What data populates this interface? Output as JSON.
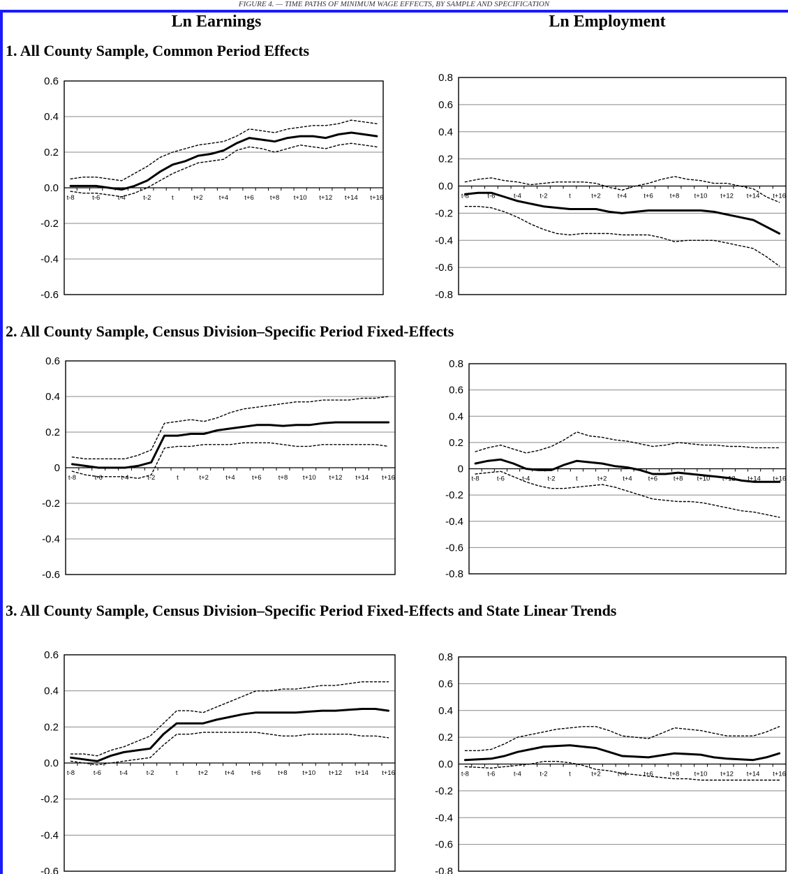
{
  "figure_title": "FIGURE 4. — TIME PATHS OF MINIMUM WAGE EFFECTS, BY SAMPLE AND SPECIFICATION",
  "columns": {
    "left": "Ln Earnings",
    "right": "Ln Employment"
  },
  "sections": [
    "1.   All County Sample, Common Period Effects",
    "2.   All County Sample, Census Division–Specific Period Fixed-Effects",
    "3.   All County Sample, Census Division–Specific Period Fixed-Effects and State Linear Trends"
  ],
  "style": {
    "frame_color": "#1a1aff",
    "grid_color": "#888888",
    "line_color": "#000000"
  },
  "chart_data": [
    {
      "type": "line",
      "title": "",
      "xlabel": "",
      "ylabel": "",
      "x": [
        "t-8",
        "t-7",
        "t-6",
        "t-5",
        "t-4",
        "t-3",
        "t-2",
        "t-1",
        "t",
        "t+1",
        "t+2",
        "t+3",
        "t+4",
        "t+5",
        "t+6",
        "t+7",
        "t+8",
        "t+9",
        "t+10",
        "t+11",
        "t+12",
        "t+13",
        "t+14",
        "t+15",
        "t+16"
      ],
      "x_tick_labels": [
        "t-8",
        "t-6",
        "t-4",
        "t-2",
        "t",
        "t+2",
        "t+4",
        "t+6",
        "t+8",
        "t+10",
        "t+12",
        "t+14",
        "t+16"
      ],
      "y_tick_labels": [
        "0.6",
        "0.4",
        "0.2",
        "0.0",
        "-0.2",
        "-0.4",
        "-0.6"
      ],
      "ylim": [
        -0.6,
        0.6
      ],
      "grid": true,
      "series": [
        {
          "values": [
            0.01,
            0.01,
            0.01,
            0.0,
            -0.01,
            0.01,
            0.04,
            0.09,
            0.13,
            0.15,
            0.18,
            0.19,
            0.21,
            0.25,
            0.28,
            0.27,
            0.26,
            0.28,
            0.29,
            0.29,
            0.28,
            0.3,
            0.31,
            0.3,
            0.29
          ]
        },
        {
          "values": [
            0.05,
            0.06,
            0.06,
            0.05,
            0.04,
            0.08,
            0.12,
            0.17,
            0.2,
            0.22,
            0.24,
            0.25,
            0.26,
            0.29,
            0.33,
            0.32,
            0.31,
            0.33,
            0.34,
            0.35,
            0.35,
            0.36,
            0.38,
            0.37,
            0.36
          ]
        },
        {
          "values": [
            -0.02,
            -0.03,
            -0.03,
            -0.04,
            -0.05,
            -0.03,
            0.0,
            0.04,
            0.08,
            0.11,
            0.14,
            0.15,
            0.16,
            0.21,
            0.23,
            0.22,
            0.2,
            0.22,
            0.24,
            0.23,
            0.22,
            0.24,
            0.25,
            0.24,
            0.23
          ]
        }
      ]
    },
    {
      "type": "line",
      "title": "",
      "xlabel": "",
      "ylabel": "",
      "x": [
        "t-8",
        "t-7",
        "t-6",
        "t-5",
        "t-4",
        "t-3",
        "t-2",
        "t-1",
        "t",
        "t+1",
        "t+2",
        "t+3",
        "t+4",
        "t+5",
        "t+6",
        "t+7",
        "t+8",
        "t+9",
        "t+10",
        "t+11",
        "t+12",
        "t+13",
        "t+14",
        "t+15",
        "t+16"
      ],
      "x_tick_labels": [
        "t-8",
        "t-6",
        "t-4",
        "t-2",
        "t",
        "t+2",
        "t+4",
        "t+6",
        "t+8",
        "t+10",
        "t+12",
        "t+14",
        "t+16"
      ],
      "y_tick_labels": [
        "0.8",
        "0.6",
        "0.4",
        "0.2",
        "0.0",
        "-0.2",
        "-0.4",
        "-0.6",
        "-0.8"
      ],
      "ylim": [
        -0.8,
        0.8
      ],
      "grid": true,
      "series": [
        {
          "values": [
            -0.06,
            -0.05,
            -0.05,
            -0.08,
            -0.11,
            -0.13,
            -0.15,
            -0.16,
            -0.17,
            -0.17,
            -0.17,
            -0.19,
            -0.2,
            -0.19,
            -0.18,
            -0.18,
            -0.18,
            -0.18,
            -0.18,
            -0.19,
            -0.21,
            -0.23,
            -0.25,
            -0.3,
            -0.35
          ]
        },
        {
          "values": [
            0.03,
            0.05,
            0.06,
            0.04,
            0.03,
            0.01,
            0.02,
            0.03,
            0.03,
            0.03,
            0.02,
            -0.01,
            -0.03,
            0.0,
            0.02,
            0.05,
            0.07,
            0.05,
            0.04,
            0.02,
            0.02,
            0.0,
            -0.02,
            -0.08,
            -0.12
          ]
        },
        {
          "values": [
            -0.15,
            -0.15,
            -0.16,
            -0.19,
            -0.23,
            -0.28,
            -0.32,
            -0.35,
            -0.36,
            -0.35,
            -0.35,
            -0.35,
            -0.36,
            -0.36,
            -0.36,
            -0.38,
            -0.41,
            -0.4,
            -0.4,
            -0.4,
            -0.42,
            -0.44,
            -0.46,
            -0.52,
            -0.59
          ]
        }
      ]
    },
    {
      "type": "line",
      "title": "",
      "xlabel": "",
      "ylabel": "",
      "x": [
        "t-8",
        "t-7",
        "t-6",
        "t-5",
        "t-4",
        "t-3",
        "t-2",
        "t-1",
        "t",
        "t+1",
        "t+2",
        "t+3",
        "t+4",
        "t+5",
        "t+6",
        "t+7",
        "t+8",
        "t+9",
        "t+10",
        "t+11",
        "t+12",
        "t+13",
        "t+14",
        "t+15",
        "t+16"
      ],
      "x_tick_labels": [
        "t-8",
        "t-6",
        "t-4",
        "t-2",
        "t",
        "t+2",
        "t+4",
        "t+6",
        "t+8",
        "t+10",
        "t+12",
        "t+14",
        "t+16"
      ],
      "y_tick_labels": [
        "0.6",
        "0.4",
        "0.2",
        "0",
        "-0.2",
        "-0.4",
        "-0.6"
      ],
      "ylim": [
        -0.6,
        0.6
      ],
      "grid": true,
      "series": [
        {
          "values": [
            0.02,
            0.01,
            0.0,
            0.0,
            0.0,
            0.01,
            0.03,
            0.18,
            0.18,
            0.19,
            0.19,
            0.21,
            0.22,
            0.23,
            0.24,
            0.24,
            0.235,
            0.24,
            0.24,
            0.25,
            0.255,
            0.255,
            0.255,
            0.255,
            0.255
          ]
        },
        {
          "values": [
            0.06,
            0.05,
            0.05,
            0.05,
            0.05,
            0.07,
            0.1,
            0.25,
            0.26,
            0.27,
            0.26,
            0.28,
            0.31,
            0.33,
            0.34,
            0.35,
            0.36,
            0.37,
            0.37,
            0.38,
            0.38,
            0.38,
            0.39,
            0.39,
            0.4
          ]
        },
        {
          "values": [
            -0.02,
            -0.04,
            -0.05,
            -0.05,
            -0.05,
            -0.06,
            -0.04,
            0.11,
            0.12,
            0.12,
            0.13,
            0.13,
            0.13,
            0.14,
            0.14,
            0.14,
            0.13,
            0.12,
            0.12,
            0.13,
            0.13,
            0.13,
            0.13,
            0.13,
            0.12
          ]
        }
      ]
    },
    {
      "type": "line",
      "title": "",
      "xlabel": "",
      "ylabel": "",
      "x": [
        "t-8",
        "t-7",
        "t-6",
        "t-5",
        "t-4",
        "t-3",
        "t-2",
        "t-1",
        "t",
        "t+1",
        "t+2",
        "t+3",
        "t+4",
        "t+5",
        "t+6",
        "t+7",
        "t+8",
        "t+9",
        "t+10",
        "t+11",
        "t+12",
        "t+13",
        "t+14",
        "t+15",
        "t+16"
      ],
      "x_tick_labels": [
        "t-8",
        "t-6",
        "t-4",
        "t-2",
        "t",
        "t+2",
        "t+4",
        "t+6",
        "t+8",
        "t+10",
        "t+12",
        "t+14",
        "t+16"
      ],
      "y_tick_labels": [
        "0.8",
        "0.6",
        "0.4",
        "0.2",
        "0",
        "-0.2",
        "-0.4",
        "-0.6",
        "-0.8"
      ],
      "ylim": [
        -0.8,
        0.8
      ],
      "grid": true,
      "series": [
        {
          "values": [
            0.04,
            0.06,
            0.07,
            0.04,
            0.0,
            -0.01,
            -0.01,
            0.03,
            0.06,
            0.05,
            0.04,
            0.02,
            0.01,
            -0.01,
            -0.04,
            -0.04,
            -0.03,
            -0.04,
            -0.05,
            -0.06,
            -0.07,
            -0.09,
            -0.1,
            -0.1,
            -0.1
          ]
        },
        {
          "values": [
            0.13,
            0.16,
            0.18,
            0.15,
            0.12,
            0.14,
            0.17,
            0.22,
            0.28,
            0.25,
            0.24,
            0.22,
            0.21,
            0.19,
            0.17,
            0.18,
            0.2,
            0.19,
            0.18,
            0.18,
            0.17,
            0.17,
            0.16,
            0.16,
            0.16
          ]
        },
        {
          "values": [
            -0.04,
            -0.03,
            -0.02,
            -0.06,
            -0.1,
            -0.13,
            -0.15,
            -0.15,
            -0.14,
            -0.13,
            -0.12,
            -0.14,
            -0.17,
            -0.2,
            -0.23,
            -0.24,
            -0.25,
            -0.25,
            -0.26,
            -0.28,
            -0.3,
            -0.32,
            -0.33,
            -0.35,
            -0.37
          ]
        }
      ]
    },
    {
      "type": "line",
      "title": "",
      "xlabel": "",
      "ylabel": "",
      "x": [
        "t-8",
        "t-7",
        "t-6",
        "t-5",
        "t-4",
        "t-3",
        "t-2",
        "t-1",
        "t",
        "t+1",
        "t+2",
        "t+3",
        "t+4",
        "t+5",
        "t+6",
        "t+7",
        "t+8",
        "t+9",
        "t+10",
        "t+11",
        "t+12",
        "t+13",
        "t+14",
        "t+15",
        "t+16"
      ],
      "x_tick_labels": [
        "t-8",
        "t-6",
        "t-4",
        "t-2",
        "t",
        "t+2",
        "t+4",
        "t+6",
        "t+8",
        "t+10",
        "t+12",
        "t+14",
        "t+16"
      ],
      "y_tick_labels": [
        "0.6",
        "0.4",
        "0.2",
        "0.0",
        "-0.2",
        "-0.4",
        "-0.6"
      ],
      "ylim": [
        -0.6,
        0.6
      ],
      "grid": true,
      "series": [
        {
          "values": [
            0.03,
            0.02,
            0.01,
            0.04,
            0.06,
            0.07,
            0.08,
            0.16,
            0.22,
            0.22,
            0.22,
            0.24,
            0.255,
            0.27,
            0.28,
            0.28,
            0.28,
            0.28,
            0.285,
            0.29,
            0.29,
            0.295,
            0.3,
            0.3,
            0.29
          ]
        },
        {
          "values": [
            0.05,
            0.05,
            0.04,
            0.07,
            0.09,
            0.12,
            0.15,
            0.22,
            0.29,
            0.29,
            0.28,
            0.31,
            0.34,
            0.37,
            0.4,
            0.4,
            0.41,
            0.41,
            0.42,
            0.43,
            0.43,
            0.44,
            0.45,
            0.45,
            0.45
          ]
        },
        {
          "values": [
            0.01,
            0.0,
            -0.01,
            0.0,
            0.01,
            0.02,
            0.03,
            0.1,
            0.16,
            0.16,
            0.17,
            0.17,
            0.17,
            0.17,
            0.17,
            0.16,
            0.15,
            0.15,
            0.16,
            0.16,
            0.16,
            0.16,
            0.15,
            0.15,
            0.14
          ]
        }
      ]
    },
    {
      "type": "line",
      "title": "",
      "xlabel": "",
      "ylabel": "",
      "x": [
        "t-8",
        "t-7",
        "t-6",
        "t-5",
        "t-4",
        "t-3",
        "t-2",
        "t-1",
        "t",
        "t+1",
        "t+2",
        "t+3",
        "t+4",
        "t+5",
        "t+6",
        "t+7",
        "t+8",
        "t+9",
        "t+10",
        "t+11",
        "t+12",
        "t+13",
        "t+14",
        "t+15",
        "t+16"
      ],
      "x_tick_labels": [
        "t-8",
        "t-6",
        "t-4",
        "t-2",
        "t",
        "t+2",
        "t+4",
        "t+6",
        "t+8",
        "t+10",
        "t+12",
        "t+14",
        "t+16"
      ],
      "y_tick_labels": [
        "0.8",
        "0.6",
        "0.4",
        "0.2",
        "0.0",
        "-0.2",
        "-0.4",
        "-0.6",
        "-0.8"
      ],
      "ylim": [
        -0.8,
        0.8
      ],
      "grid": true,
      "series": [
        {
          "values": [
            0.03,
            0.035,
            0.04,
            0.06,
            0.09,
            0.11,
            0.13,
            0.135,
            0.14,
            0.13,
            0.12,
            0.09,
            0.06,
            0.055,
            0.05,
            0.065,
            0.08,
            0.075,
            0.07,
            0.05,
            0.04,
            0.035,
            0.03,
            0.05,
            0.08
          ]
        },
        {
          "values": [
            0.1,
            0.1,
            0.11,
            0.15,
            0.2,
            0.22,
            0.24,
            0.26,
            0.27,
            0.28,
            0.28,
            0.25,
            0.21,
            0.2,
            0.19,
            0.23,
            0.27,
            0.26,
            0.25,
            0.23,
            0.21,
            0.21,
            0.21,
            0.24,
            0.28
          ]
        },
        {
          "values": [
            -0.02,
            -0.025,
            -0.03,
            -0.02,
            -0.01,
            0.0,
            0.02,
            0.02,
            0.01,
            -0.01,
            -0.04,
            -0.05,
            -0.07,
            -0.08,
            -0.09,
            -0.1,
            -0.11,
            -0.11,
            -0.12,
            -0.12,
            -0.12,
            -0.12,
            -0.12,
            -0.12,
            -0.12
          ]
        }
      ]
    }
  ]
}
